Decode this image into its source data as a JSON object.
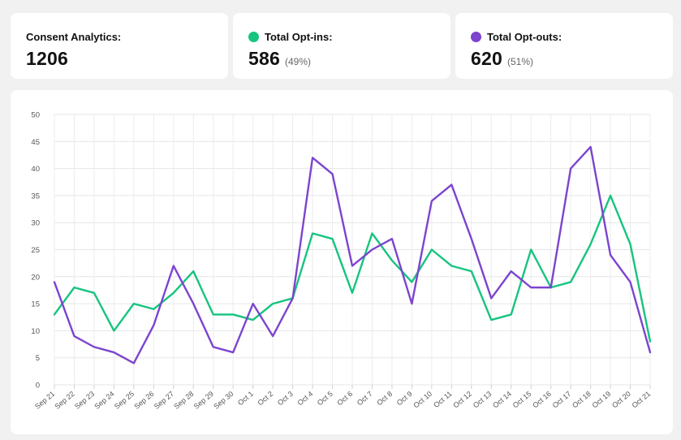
{
  "summary": {
    "total": {
      "label": "Consent Analytics:",
      "value": "1206"
    },
    "optins": {
      "label": "Total Opt-ins:",
      "value": "586",
      "pct": "(49%)",
      "color": "#16c47f"
    },
    "optouts": {
      "label": "Total Opt-outs:",
      "value": "620",
      "pct": "(51%)",
      "color": "#7c44cf"
    }
  },
  "chart_data": {
    "type": "line",
    "categories": [
      "Sep 21",
      "Sep 22",
      "Sep 23",
      "Sep 24",
      "Sep 25",
      "Sep 26",
      "Sep 27",
      "Sep 28",
      "Sep 29",
      "Sep 30",
      "Oct 1",
      "Oct 2",
      "Oct 3",
      "Oct 4",
      "Oct 5",
      "Oct 6",
      "Oct 7",
      "Oct 8",
      "Oct 9",
      "Oct 10",
      "Oct 11",
      "Oct 12",
      "Oct 13",
      "Oct 14",
      "Oct 15",
      "Oct 16",
      "Oct 17",
      "Oct 18",
      "Oct 19",
      "Oct 20",
      "Oct 21"
    ],
    "yticks": [
      "0",
      "5",
      "10",
      "15",
      "20",
      "25",
      "30",
      "35",
      "40",
      "45",
      "50"
    ],
    "ylim": [
      0,
      50
    ],
    "grid": true,
    "series": [
      {
        "key": "optins",
        "color": "#16c47f",
        "values": [
          13,
          18,
          17,
          10,
          15,
          14,
          17,
          21,
          13,
          13,
          12,
          15,
          16,
          28,
          27,
          17,
          28,
          23,
          19,
          25,
          22,
          21,
          12,
          13,
          25,
          18,
          19,
          26,
          35,
          26,
          8
        ]
      },
      {
        "key": "optouts",
        "color": "#7c44cf",
        "values": [
          19,
          9,
          7,
          6,
          4,
          11,
          22,
          15,
          7,
          6,
          15,
          9,
          16,
          42,
          39,
          22,
          25,
          27,
          15,
          34,
          37,
          27,
          16,
          21,
          18,
          18,
          40,
          44,
          24,
          19,
          6
        ]
      }
    ]
  }
}
